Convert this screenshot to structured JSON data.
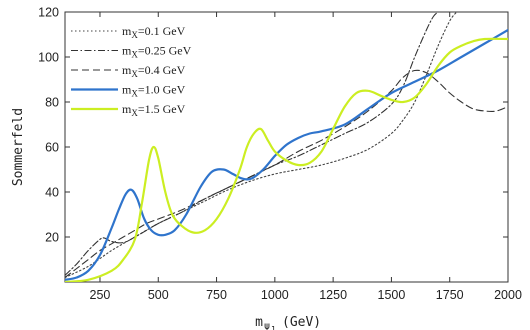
{
  "chart_data": {
    "type": "line",
    "title": "",
    "xlabel": "m",
    "xlabel_sub": "ψ",
    "xlabel_subsub": "1",
    "xlabel_unit": "(GeV)",
    "ylabel": "Sommerfeld",
    "xlim": [
      100,
      2000
    ],
    "ylim": [
      0,
      120
    ],
    "xticks": [
      250,
      500,
      750,
      1000,
      1250,
      1500,
      1750,
      2000
    ],
    "yticks": [
      20,
      40,
      60,
      80,
      100,
      120
    ],
    "grid": false,
    "legend_position": "top-left",
    "series": [
      {
        "name": "=0.1 GeV",
        "legend_prefix": "m",
        "legend_sub": "X",
        "color": "#444444",
        "dash": "1.5,2.5",
        "width": 1.1,
        "x": [
          100,
          200,
          300,
          400,
          500,
          600,
          700,
          800,
          900,
          1000,
          1100,
          1200,
          1300,
          1400,
          1500,
          1550,
          1600,
          1650,
          1700,
          1750,
          1780
        ],
        "y": [
          2,
          7,
          14,
          20,
          26,
          31,
          36,
          41,
          45,
          48,
          50,
          52,
          55,
          59,
          66,
          72,
          80,
          92,
          105,
          116,
          120
        ]
      },
      {
        "name": "=0.25 GeV",
        "legend_prefix": "m",
        "legend_sub": "X",
        "color": "#333333",
        "dash": "7,2.5,1.5,2.5",
        "width": 1.1,
        "x": [
          100,
          150,
          200,
          250,
          270,
          300,
          350,
          400,
          450,
          500,
          600,
          700,
          800,
          900,
          1000,
          1100,
          1200,
          1300,
          1400,
          1500,
          1550,
          1600,
          1650,
          1680,
          1700
        ],
        "y": [
          3,
          8,
          14,
          19,
          19.5,
          18,
          17.5,
          20,
          23,
          26,
          31,
          37,
          42,
          47,
          52,
          56,
          61,
          66,
          71,
          79,
          87,
          100,
          112,
          118,
          120
        ]
      },
      {
        "name": "=0.4 GeV",
        "legend_prefix": "m",
        "legend_sub": "X",
        "color": "#333333",
        "dash": "7,4",
        "width": 1.1,
        "x": [
          100,
          150,
          200,
          250,
          300,
          350,
          400,
          450,
          500,
          600,
          700,
          800,
          900,
          1000,
          1100,
          1200,
          1300,
          1400,
          1500,
          1550,
          1600,
          1650,
          1700,
          1750,
          1800,
          1850,
          1900,
          1950,
          2000
        ],
        "y": [
          2,
          6,
          10,
          14,
          17,
          20,
          23,
          26,
          28,
          32,
          37,
          42,
          47,
          52,
          58,
          63,
          69,
          76,
          85,
          91,
          94,
          93,
          89,
          84,
          80,
          77,
          76,
          76,
          78
        ]
      },
      {
        "name": "=1.0 GeV",
        "legend_prefix": "m",
        "legend_sub": "X",
        "color": "#2f74cc",
        "dash": "",
        "width": 2.2,
        "x": [
          100,
          150,
          200,
          250,
          300,
          330,
          360,
          385,
          410,
          440,
          470,
          500,
          530,
          570,
          620,
          680,
          730,
          780,
          820,
          860,
          900,
          950,
          1000,
          1050,
          1100,
          1150,
          1200,
          1300,
          1400,
          1500,
          1600,
          1700,
          1800,
          1900,
          2000
        ],
        "y": [
          1,
          2,
          5,
          12,
          24,
          32,
          39,
          41,
          37,
          28,
          23,
          21,
          21,
          23,
          30,
          42,
          49,
          50,
          48,
          46,
          46,
          50,
          56,
          61,
          64,
          66,
          67,
          70,
          77,
          84,
          89,
          94,
          100,
          106,
          112
        ]
      },
      {
        "name": "=1.5 GeV",
        "legend_prefix": "m",
        "legend_sub": "X",
        "color": "#ccee22",
        "dash": "",
        "width": 2.2,
        "x": [
          100,
          200,
          300,
          350,
          400,
          430,
          460,
          480,
          500,
          530,
          560,
          600,
          650,
          700,
          750,
          800,
          850,
          880,
          910,
          940,
          970,
          1000,
          1050,
          1100,
          1150,
          1200,
          1250,
          1300,
          1350,
          1400,
          1450,
          1500,
          1550,
          1600,
          1650,
          1700,
          1750,
          1800,
          1850,
          1900,
          2000
        ],
        "y": [
          0,
          1,
          5,
          10,
          19,
          35,
          54,
          60,
          55,
          40,
          30,
          25,
          22,
          23,
          28,
          37,
          50,
          60,
          66,
          68,
          63,
          58,
          54,
          52,
          53,
          58,
          68,
          78,
          84,
          85,
          83,
          81,
          80,
          82,
          88,
          96,
          102,
          105,
          107,
          108,
          108
        ]
      }
    ]
  }
}
